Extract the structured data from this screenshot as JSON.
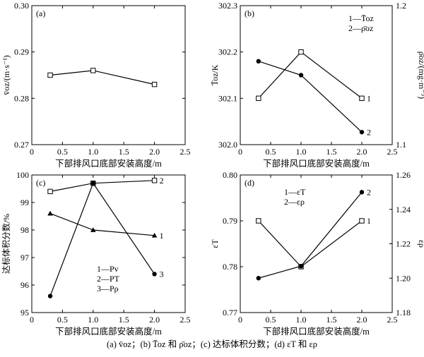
{
  "caption": "(a)  v̄oz；(b)  T̄oz 和 ρ̄oz；(c)  达标体积分数；(d) εT 和 ερ",
  "chart_data": [
    {
      "id": "a",
      "type": "line",
      "panel_label": "(a)",
      "xlabel": "下部排风口底部安装高度/m",
      "ylabel": "v̄oz/(m·s⁻¹)",
      "xlim": [
        0,
        2.5
      ],
      "ylim": [
        0.27,
        0.3
      ],
      "x_ticks": [
        "0",
        "0.5",
        "1.0",
        "1.5",
        "2.0",
        "2.5"
      ],
      "y_ticks": [
        "0.27",
        "0.28",
        "0.29",
        "0.30"
      ],
      "series": [
        {
          "marker": "square-open",
          "x": [
            0.3,
            1.0,
            2.0
          ],
          "values": [
            0.285,
            0.286,
            0.283
          ]
        }
      ]
    },
    {
      "id": "b",
      "type": "line",
      "panel_label": "(b)",
      "xlabel": "下部排风口底部安装高度/m",
      "ylabel": "T̄oz/K",
      "ylabel_right": "ρ̄oz/(mg·m⁻³)",
      "xlim": [
        0,
        2.5
      ],
      "ylim": [
        302.0,
        302.3
      ],
      "ylim_right": [
        1.1,
        1.2
      ],
      "x_ticks": [
        "0",
        "0.5",
        "1.0",
        "1.5",
        "2.0",
        "2.5"
      ],
      "y_ticks": [
        "302.0",
        "302.1",
        "302.2",
        "302.3"
      ],
      "y_ticks_right": [
        "1.1",
        "1.2"
      ],
      "legend": [
        "1—T̄oz",
        "2—ρ̄oz"
      ],
      "series": [
        {
          "label": "1",
          "marker": "square-open",
          "axis": "left",
          "x": [
            0.3,
            1.0,
            2.0
          ],
          "values": [
            302.1,
            302.2,
            302.1
          ]
        },
        {
          "label": "2",
          "marker": "circle-filled",
          "axis": "right",
          "x": [
            0.3,
            1.0,
            2.0
          ],
          "values": [
            1.16,
            1.15,
            1.109
          ]
        }
      ]
    },
    {
      "id": "c",
      "type": "line",
      "panel_label": "(c)",
      "xlabel": "下部排风口底部安装高度/m",
      "ylabel": "达标体积分数/%",
      "xlim": [
        0,
        2.5
      ],
      "ylim": [
        95,
        100
      ],
      "x_ticks": [
        "0",
        "0.5",
        "1.0",
        "1.5",
        "2.0",
        "2.5"
      ],
      "y_ticks": [
        "95",
        "96",
        "97",
        "98",
        "99",
        "100"
      ],
      "legend": [
        "1—Pv",
        "2—PT",
        "3—Pρ"
      ],
      "series": [
        {
          "label": "2",
          "marker": "square-open",
          "x": [
            0.3,
            1.0,
            2.0
          ],
          "values": [
            99.4,
            99.7,
            99.8
          ]
        },
        {
          "label": "1",
          "marker": "triangle-filled",
          "x": [
            0.3,
            1.0,
            2.0
          ],
          "values": [
            98.6,
            98.0,
            97.8
          ]
        },
        {
          "label": "3",
          "marker": "circle-filled",
          "x": [
            0.3,
            1.0,
            2.0
          ],
          "values": [
            95.6,
            99.7,
            96.4
          ]
        }
      ]
    },
    {
      "id": "d",
      "type": "line",
      "panel_label": "(d)",
      "xlabel": "下部排风口底部安装高度/m",
      "ylabel": "εT",
      "ylabel_right": "ερ",
      "xlim": [
        0,
        2.5
      ],
      "ylim": [
        0.77,
        0.8
      ],
      "ylim_right": [
        1.18,
        1.26
      ],
      "x_ticks": [
        "0",
        "0.5",
        "1.0",
        "1.5",
        "2.0",
        "2.5"
      ],
      "y_ticks": [
        "0.77",
        "0.78",
        "0.79",
        "0.80"
      ],
      "y_ticks_right": [
        "1.18",
        "1.20",
        "1.22",
        "1.24",
        "1.26"
      ],
      "legend": [
        "1—εT",
        "2—ερ"
      ],
      "series": [
        {
          "label": "1",
          "marker": "square-open",
          "axis": "left",
          "x": [
            0.3,
            1.0,
            2.0
          ],
          "values": [
            0.79,
            0.78,
            0.79
          ]
        },
        {
          "label": "2",
          "marker": "circle-filled",
          "axis": "right",
          "x": [
            0.3,
            1.0,
            2.0
          ],
          "values": [
            1.2,
            1.207,
            1.25
          ]
        }
      ]
    }
  ]
}
